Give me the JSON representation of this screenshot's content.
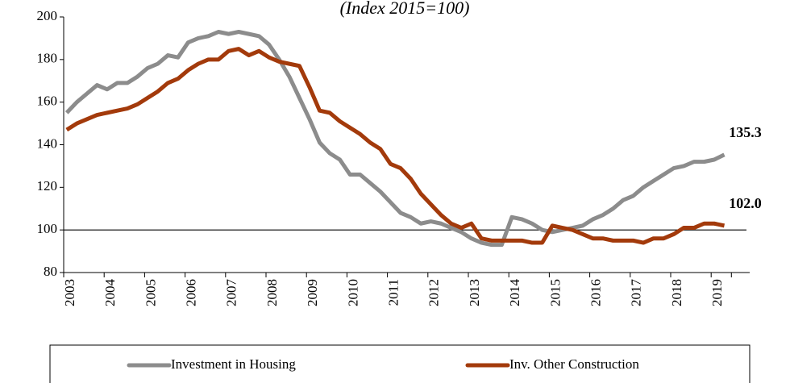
{
  "chart_data": {
    "type": "line",
    "title": "(Index 2015=100)",
    "categories": [
      "2003",
      null,
      null,
      null,
      "2004",
      null,
      null,
      null,
      "2005",
      null,
      null,
      null,
      "2006",
      null,
      null,
      null,
      "2007",
      null,
      null,
      null,
      "2008",
      null,
      null,
      null,
      "2009",
      null,
      null,
      null,
      "2010",
      null,
      null,
      null,
      "2011",
      null,
      null,
      null,
      "2012",
      null,
      null,
      null,
      "2013",
      null,
      null,
      null,
      "2014",
      null,
      null,
      null,
      "2015",
      null,
      null,
      null,
      "2016",
      null,
      null,
      null,
      "2017",
      null,
      null,
      null,
      "2018",
      null,
      null,
      null,
      "2019",
      null
    ],
    "series": [
      {
        "name": "Investment in Housing",
        "color": "#8c8c8c",
        "values": [
          155,
          160,
          164,
          168,
          166,
          169,
          169,
          172,
          176,
          178,
          182,
          181,
          188,
          190,
          191,
          193,
          192,
          193,
          192,
          191,
          187,
          180,
          172,
          162,
          152,
          141,
          136,
          133,
          126,
          126,
          122,
          118,
          113,
          108,
          106,
          103,
          104,
          103,
          101,
          99,
          96,
          94,
          93,
          93,
          106,
          105,
          103,
          100,
          99,
          100,
          101,
          102,
          105,
          107,
          110,
          114,
          116,
          120,
          123,
          126,
          129,
          130,
          132,
          132,
          133,
          135.3
        ],
        "value_labels": [
          null,
          null,
          null,
          null,
          null,
          null,
          null,
          null,
          null,
          null,
          null,
          null,
          null,
          null,
          null,
          null,
          null,
          null,
          null,
          null,
          null,
          null,
          null,
          null,
          null,
          null,
          null,
          null,
          null,
          null,
          null,
          null,
          null,
          null,
          null,
          null,
          null,
          null,
          null,
          null,
          null,
          null,
          null,
          null,
          null,
          null,
          null,
          null,
          null,
          null,
          null,
          null,
          null,
          null,
          null,
          null,
          null,
          null,
          null,
          null,
          null,
          null,
          null,
          null,
          null,
          "135.3"
        ]
      },
      {
        "name": "Inv. Other Construction",
        "color": "#a33a0b",
        "values": [
          147,
          150,
          152,
          154,
          155,
          156,
          157,
          159,
          162,
          165,
          169,
          171,
          175,
          178,
          180,
          180,
          184,
          185,
          182,
          184,
          181,
          179,
          178,
          177,
          167,
          156,
          155,
          151,
          148,
          145,
          141,
          138,
          131,
          129,
          124,
          117,
          112,
          107,
          103,
          101,
          103,
          96,
          95,
          95,
          95,
          95,
          94,
          94,
          102,
          101,
          100,
          98,
          96,
          96,
          95,
          95,
          95,
          94,
          96,
          96,
          98,
          101,
          101,
          103,
          103,
          102.0
        ],
        "value_labels": [
          null,
          null,
          null,
          null,
          null,
          null,
          null,
          null,
          null,
          null,
          null,
          null,
          null,
          null,
          null,
          null,
          null,
          null,
          null,
          null,
          null,
          null,
          null,
          null,
          null,
          null,
          null,
          null,
          null,
          null,
          null,
          null,
          null,
          null,
          null,
          null,
          null,
          null,
          null,
          null,
          null,
          null,
          null,
          null,
          null,
          null,
          null,
          null,
          null,
          null,
          null,
          null,
          null,
          null,
          null,
          null,
          null,
          null,
          null,
          null,
          null,
          null,
          null,
          null,
          null,
          "102.0"
        ]
      }
    ],
    "ylim": [
      80,
      200
    ],
    "yticks": [
      80,
      100,
      120,
      140,
      160,
      180,
      200
    ],
    "reference_line": 100,
    "grid": false,
    "legend": "bottom"
  }
}
